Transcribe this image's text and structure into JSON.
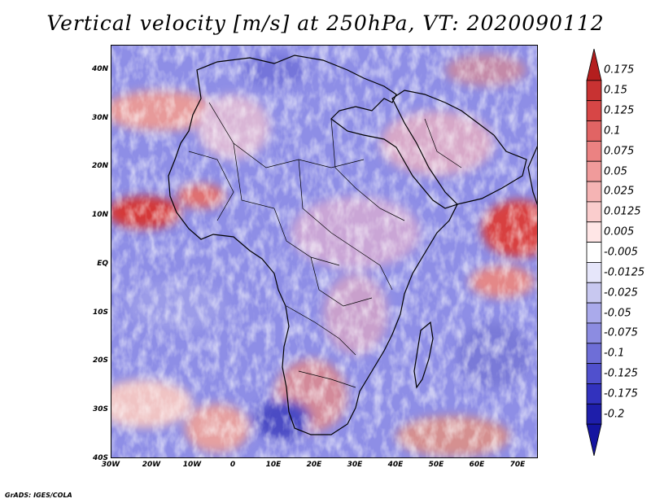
{
  "title": "Vertical velocity [m/s] at 250hPa, VT: 2020090112",
  "credit": "GrADS: IGES/COLA",
  "map": {
    "lon_range": [
      -30,
      75
    ],
    "lat_range": [
      -40,
      45
    ],
    "lat_ticks": [
      "40N",
      "30N",
      "20N",
      "10N",
      "EQ",
      "10S",
      "20S",
      "30S",
      "40S"
    ],
    "lat_values": [
      40,
      30,
      20,
      10,
      0,
      -10,
      -20,
      -30,
      -40
    ],
    "lon_ticks": [
      "30W",
      "20W",
      "10W",
      "0",
      "10E",
      "20E",
      "30E",
      "40E",
      "50E",
      "60E",
      "70E"
    ],
    "lon_values": [
      -30,
      -20,
      -10,
      0,
      10,
      20,
      30,
      40,
      50,
      60,
      70
    ]
  },
  "colorbar": {
    "labels": [
      "0.175",
      "0.15",
      "0.125",
      "0.1",
      "0.075",
      "0.05",
      "0.025",
      "0.0125",
      "0.005",
      "-0.005",
      "-0.0125",
      "-0.025",
      "-0.05",
      "-0.075",
      "-0.1",
      "-0.125",
      "-0.175",
      "-0.2"
    ],
    "colors": [
      "#b41e1e",
      "#c83232",
      "#d74646",
      "#e16464",
      "#eb8282",
      "#f09b9b",
      "#f5b4b4",
      "#facdcd",
      "#ffe6e6",
      "#ffffff",
      "#e6e6fa",
      "#c8c8f0",
      "#aaaaeb",
      "#8c8ce1",
      "#6e6ed7",
      "#5050cd",
      "#3232be",
      "#1e1eaa",
      "#1414a0"
    ]
  }
}
